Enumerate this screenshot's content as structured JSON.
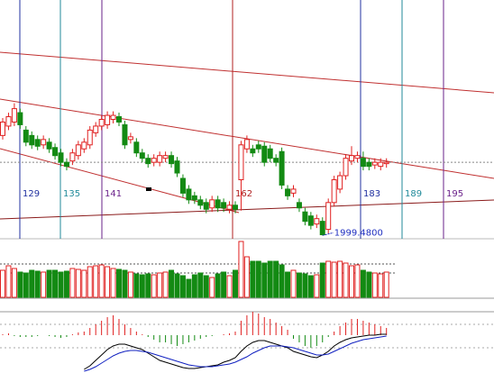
{
  "chart_data": {
    "type": "candlestick",
    "open": [
      2074,
      2081,
      2084,
      2091,
      2078,
      2074,
      2071,
      2067,
      2069,
      2065,
      2061,
      2054,
      2055,
      2059,
      2064,
      2067,
      2076,
      2081,
      2082,
      2086,
      2088,
      2082,
      2071,
      2069,
      2061,
      2057,
      2054,
      2054,
      2057,
      2059,
      2055,
      2042,
      2034,
      2029,
      2026,
      2024,
      2020,
      2026,
      2024,
      2019,
      2022,
      2041,
      2064,
      2064,
      2067,
      2066,
      2064,
      2057,
      2062,
      2034,
      2031,
      2024,
      2017,
      2014,
      2008,
      2010,
      2004,
      2024,
      2034,
      2044,
      2055,
      2057,
      2057,
      2054,
      2052,
      2051,
      2053
    ],
    "high": [
      2087,
      2091,
      2098,
      2094,
      2081,
      2077,
      2074,
      2074,
      2072,
      2068,
      2064,
      2057,
      2064,
      2070,
      2072,
      2081,
      2084,
      2089,
      2092,
      2092,
      2091,
      2085,
      2076,
      2072,
      2064,
      2060,
      2060,
      2062,
      2062,
      2062,
      2058,
      2045,
      2037,
      2032,
      2029,
      2027,
      2029,
      2029,
      2027,
      2025,
      2025,
      2070,
      2074,
      2067,
      2070,
      2069,
      2067,
      2060,
      2065,
      2037,
      2037,
      2027,
      2020,
      2017,
      2015,
      2013,
      2027,
      2044,
      2047,
      2060,
      2066,
      2062,
      2062,
      2057,
      2057,
      2057,
      2057
    ],
    "low": [
      2071,
      2078,
      2081,
      2079,
      2066,
      2064,
      2063,
      2064,
      2061,
      2056,
      2051,
      2048,
      2052,
      2056,
      2061,
      2064,
      2073,
      2078,
      2079,
      2083,
      2081,
      2064,
      2068,
      2058,
      2054,
      2050,
      2051,
      2051,
      2054,
      2050,
      2043,
      2028,
      2023,
      2023,
      2019,
      2016,
      2017,
      2017,
      2017,
      2016,
      2016,
      2018,
      2061,
      2058,
      2061,
      2051,
      2054,
      2051,
      2034,
      2026,
      2028,
      2017,
      2007,
      2004,
      2005,
      1999.48,
      2001,
      2021,
      2031,
      2041,
      2052,
      2054,
      2048,
      2048,
      2049,
      2048,
      2050
    ],
    "close": [
      2084,
      2088,
      2094,
      2082,
      2069,
      2067,
      2066,
      2071,
      2064,
      2059,
      2054,
      2051,
      2061,
      2067,
      2069,
      2078,
      2081,
      2086,
      2089,
      2089,
      2084,
      2067,
      2073,
      2061,
      2057,
      2053,
      2057,
      2059,
      2059,
      2053,
      2046,
      2031,
      2026,
      2026,
      2022,
      2019,
      2026,
      2020,
      2020,
      2022,
      2019,
      2067,
      2071,
      2061,
      2064,
      2054,
      2057,
      2054,
      2037,
      2029,
      2034,
      2020,
      2010,
      2007,
      2012,
      2000,
      2024,
      2041,
      2044,
      2057,
      2059,
      2059,
      2051,
      2051,
      2054,
      2054,
      2054
    ],
    "ylim": [
      1997,
      2175
    ],
    "up_color": "#e02020",
    "down_color": "#138a13",
    "cycle_labels": [
      "129",
      "135",
      "141",
      "162",
      "183",
      "189",
      "195"
    ],
    "low_label": "1999.4800",
    "volume": {
      "values": [
        30,
        35,
        32,
        28,
        27,
        30,
        29,
        28,
        30,
        30,
        28,
        29,
        32,
        31,
        30,
        34,
        35,
        36,
        34,
        32,
        31,
        30,
        28,
        26,
        25,
        26,
        25,
        27,
        28,
        30,
        26,
        24,
        20,
        25,
        27,
        24,
        22,
        26,
        28,
        24,
        30,
        62,
        45,
        40,
        40,
        38,
        40,
        40,
        36,
        28,
        30,
        27,
        26,
        24,
        25,
        38,
        40,
        39,
        40,
        38,
        35,
        36,
        30,
        28,
        27,
        26,
        28
      ],
      "ylim": [
        0,
        65
      ]
    },
    "macd": {
      "histogram": [
        1,
        2,
        -1,
        -2,
        -2,
        -2,
        -1,
        0,
        -1,
        -2,
        -3,
        -2,
        1,
        3,
        4,
        8,
        12,
        16,
        20,
        22,
        18,
        12,
        8,
        4,
        1,
        -2,
        -5,
        -8,
        -8,
        -10,
        -12,
        -10,
        -8,
        -6,
        -4,
        -2,
        -1,
        0,
        1,
        2,
        4,
        16,
        22,
        26,
        24,
        20,
        18,
        14,
        10,
        6,
        -4,
        -8,
        -12,
        -14,
        -12,
        -8,
        -2,
        4,
        10,
        14,
        18,
        18,
        16,
        14,
        12,
        10,
        8
      ],
      "ylim": [
        -42,
        27
      ],
      "series": [
        {
          "color": "#000000",
          "values": [
            null,
            null,
            null,
            null,
            null,
            null,
            null,
            null,
            null,
            null,
            null,
            null,
            null,
            null,
            -38,
            -34,
            -28,
            -22,
            -16,
            -12,
            -10,
            -10,
            -12,
            -14,
            -16,
            -20,
            -24,
            -28,
            -30,
            -32,
            -34,
            -36,
            -37,
            -37,
            -36,
            -35,
            -34,
            -33,
            -30,
            -28,
            -25,
            -18,
            -12,
            -8,
            -6,
            -6,
            -8,
            -10,
            -12,
            -14,
            -18,
            -20,
            -22,
            -24,
            -25,
            -22,
            -18,
            -12,
            -8,
            -5,
            -3,
            -2,
            -1,
            0,
            0,
            1,
            1
          ]
        },
        {
          "color": "#1020c0",
          "values": [
            null,
            null,
            null,
            null,
            null,
            null,
            null,
            null,
            null,
            null,
            null,
            null,
            null,
            null,
            -40,
            -38,
            -35,
            -31,
            -27,
            -23,
            -20,
            -18,
            -17,
            -17,
            -18,
            -19,
            -21,
            -23,
            -25,
            -27,
            -29,
            -31,
            -33,
            -34,
            -35,
            -35,
            -35,
            -34,
            -33,
            -32,
            -30,
            -27,
            -24,
            -20,
            -17,
            -14,
            -12,
            -12,
            -12,
            -13,
            -14,
            -16,
            -18,
            -20,
            -22,
            -22,
            -21,
            -18,
            -15,
            -12,
            -9,
            -7,
            -5,
            -4,
            -3,
            -2,
            -1
          ]
        }
      ]
    }
  }
}
